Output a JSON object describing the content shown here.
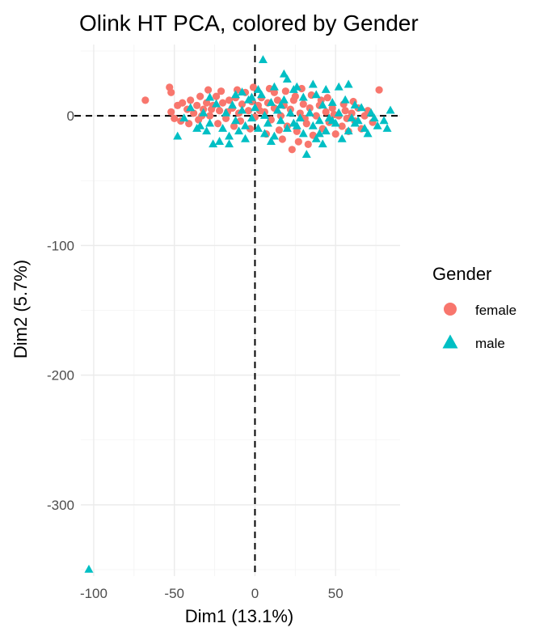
{
  "chart_data": {
    "type": "scatter",
    "title": "Olink HT PCA, colored by Gender",
    "xlabel": "Dim1 (13.1%)",
    "ylabel": "Dim2 (5.7%)",
    "xlim": [
      -108,
      90
    ],
    "ylim": [
      -355,
      55
    ],
    "x_ticks": [
      -100,
      -50,
      0,
      50
    ],
    "y_ticks": [
      0,
      -100,
      -200,
      -300
    ],
    "x_tick_labels": [
      "-100",
      "-50",
      "0",
      "50"
    ],
    "y_tick_labels": [
      "0",
      "-100",
      "-200",
      "-300"
    ],
    "reference_lines": {
      "x": 0,
      "y": 0
    },
    "grid": true,
    "legend": {
      "title": "Gender",
      "placement": "right"
    },
    "series": [
      {
        "name": "female",
        "marker": "circle",
        "color": "#F8766D",
        "points": [
          [
            -68,
            12
          ],
          [
            -52,
            3
          ],
          [
            -52,
            18
          ],
          [
            -50,
            -2
          ],
          [
            -48,
            8
          ],
          [
            -45,
            10
          ],
          [
            -42,
            5
          ],
          [
            -40,
            12
          ],
          [
            -38,
            2
          ],
          [
            -36,
            8
          ],
          [
            -34,
            15
          ],
          [
            -32,
            5
          ],
          [
            -30,
            10
          ],
          [
            -28,
            0
          ],
          [
            -26,
            8
          ],
          [
            -24,
            15
          ],
          [
            -22,
            4
          ],
          [
            -20,
            10
          ],
          [
            -18,
            -2
          ],
          [
            -16,
            12
          ],
          [
            -14,
            6
          ],
          [
            -12,
            14
          ],
          [
            -10,
            2
          ],
          [
            -8,
            9
          ],
          [
            -6,
            18
          ],
          [
            -4,
            4
          ],
          [
            -2,
            11
          ],
          [
            0,
            -1
          ],
          [
            2,
            8
          ],
          [
            4,
            14
          ],
          [
            6,
            3
          ],
          [
            8,
            10
          ],
          [
            10,
            -3
          ],
          [
            12,
            6
          ],
          [
            14,
            12
          ],
          [
            16,
            0
          ],
          [
            18,
            8
          ],
          [
            20,
            -8
          ],
          [
            22,
            5
          ],
          [
            24,
            12
          ],
          [
            26,
            -12
          ],
          [
            28,
            2
          ],
          [
            30,
            9
          ],
          [
            32,
            -6
          ],
          [
            34,
            6
          ],
          [
            36,
            -15
          ],
          [
            38,
            0
          ],
          [
            40,
            8
          ],
          [
            42,
            -10
          ],
          [
            44,
            3
          ],
          [
            46,
            -5
          ],
          [
            48,
            6
          ],
          [
            50,
            -14
          ],
          [
            52,
            0
          ],
          [
            54,
            -8
          ],
          [
            56,
            4
          ],
          [
            58,
            -12
          ],
          [
            60,
            2
          ],
          [
            62,
            -4
          ],
          [
            64,
            6
          ],
          [
            66,
            -10
          ],
          [
            68,
            0
          ],
          [
            70,
            4
          ],
          [
            -46,
            -4
          ],
          [
            -41,
            -6
          ],
          [
            -35,
            -3
          ],
          [
            -29,
            20
          ],
          [
            -21,
            19
          ],
          [
            -11,
            20
          ],
          [
            -1,
            22
          ],
          [
            9,
            21
          ],
          [
            19,
            19
          ],
          [
            29,
            21
          ],
          [
            35,
            16
          ],
          [
            45,
            14
          ],
          [
            -33,
            0
          ],
          [
            -23,
            -6
          ],
          [
            -13,
            -8
          ],
          [
            -3,
            -10
          ],
          [
            7,
            -14
          ],
          [
            17,
            -18
          ],
          [
            23,
            -26
          ],
          [
            27,
            -20
          ],
          [
            33,
            -22
          ],
          [
            -53,
            22
          ],
          [
            77,
            20
          ],
          [
            73,
            -5
          ],
          [
            61,
            11
          ],
          [
            55,
            9
          ],
          [
            12,
            18
          ],
          [
            -9,
            -4
          ],
          [
            3,
            4
          ],
          [
            15,
            -11
          ],
          [
            25,
            15
          ],
          [
            31,
            -2
          ],
          [
            41,
            12
          ],
          [
            49,
            1
          ],
          [
            57,
            -2
          ],
          [
            -17,
            3
          ],
          [
            -27,
            5
          ]
        ]
      },
      {
        "name": "male",
        "marker": "triangle",
        "color": "#00BFC4",
        "points": [
          [
            -103,
            -350
          ],
          [
            -48,
            -16
          ],
          [
            -44,
            -2
          ],
          [
            -40,
            6
          ],
          [
            -36,
            -10
          ],
          [
            -32,
            2
          ],
          [
            -28,
            -6
          ],
          [
            -24,
            9
          ],
          [
            -22,
            -20
          ],
          [
            -20,
            -10
          ],
          [
            -18,
            2
          ],
          [
            -16,
            -16
          ],
          [
            -14,
            8
          ],
          [
            -12,
            -4
          ],
          [
            -10,
            -12
          ],
          [
            -8,
            4
          ],
          [
            -6,
            -8
          ],
          [
            -4,
            12
          ],
          [
            -2,
            -2
          ],
          [
            0,
            6
          ],
          [
            2,
            -10
          ],
          [
            4,
            16
          ],
          [
            6,
            0
          ],
          [
            8,
            -6
          ],
          [
            10,
            10
          ],
          [
            12,
            -16
          ],
          [
            14,
            4
          ],
          [
            16,
            -4
          ],
          [
            18,
            12
          ],
          [
            20,
            -10
          ],
          [
            22,
            2
          ],
          [
            24,
            -6
          ],
          [
            26,
            22
          ],
          [
            28,
            -2
          ],
          [
            30,
            14
          ],
          [
            32,
            -30
          ],
          [
            34,
            2
          ],
          [
            36,
            -8
          ],
          [
            38,
            16
          ],
          [
            40,
            -4
          ],
          [
            42,
            8
          ],
          [
            44,
            -12
          ],
          [
            46,
            -2
          ],
          [
            48,
            10
          ],
          [
            50,
            -6
          ],
          [
            52,
            2
          ],
          [
            54,
            -18
          ],
          [
            56,
            12
          ],
          [
            58,
            24
          ],
          [
            60,
            -2
          ],
          [
            62,
            8
          ],
          [
            64,
            -4
          ],
          [
            66,
            6
          ],
          [
            68,
            -10
          ],
          [
            72,
            2
          ],
          [
            76,
            -8
          ],
          [
            80,
            -4
          ],
          [
            84,
            4
          ],
          [
            5,
            43
          ],
          [
            18,
            32
          ],
          [
            20,
            28
          ],
          [
            24,
            20
          ],
          [
            44,
            20
          ],
          [
            52,
            22
          ],
          [
            74,
            -2
          ],
          [
            82,
            -10
          ],
          [
            -26,
            -22
          ],
          [
            -16,
            -22
          ],
          [
            -6,
            -18
          ],
          [
            10,
            -20
          ],
          [
            30,
            -14
          ],
          [
            40,
            -14
          ],
          [
            -34,
            -8
          ],
          [
            -28,
            14
          ],
          [
            -30,
            -12
          ],
          [
            -8,
            18
          ],
          [
            2,
            20
          ],
          [
            12,
            22
          ],
          [
            36,
            24
          ],
          [
            42,
            -22
          ],
          [
            58,
            -12
          ],
          [
            62,
            -6
          ],
          [
            70,
            -14
          ],
          [
            48,
            -4
          ],
          [
            38,
            -18
          ],
          [
            -12,
            16
          ],
          [
            16,
            8
          ],
          [
            26,
            -8
          ],
          [
            6,
            -14
          ],
          [
            -2,
            14
          ]
        ]
      }
    ]
  }
}
